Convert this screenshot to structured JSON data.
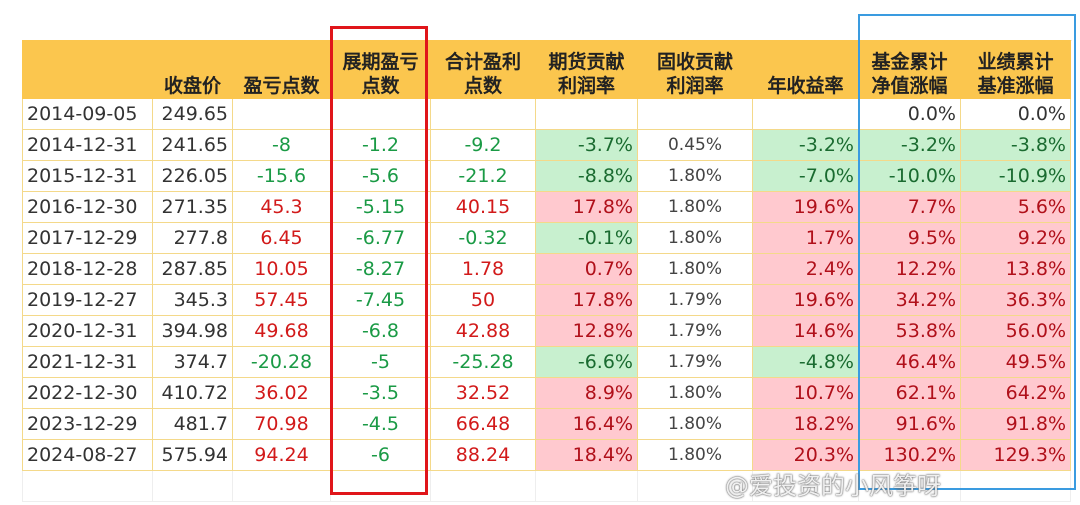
{
  "headers": [
    "",
    "收盘价",
    "盈亏点数",
    "展期盈亏\n点数",
    "合计盈利\n点数",
    "期货贡献\n利润率",
    "固收贡献\n利润率",
    "年收益率",
    "基金累计\n净值涨幅",
    "业绩累计\n基准涨幅"
  ],
  "rows": [
    [
      "2014-09-05",
      "249.65",
      "",
      "",
      "",
      "",
      "",
      "",
      "0.0%",
      "0.0%"
    ],
    [
      "2014-12-31",
      "241.65",
      "-8",
      "-1.2",
      "-9.2",
      "-3.7%",
      "0.45%",
      "-3.2%",
      "-3.2%",
      "-3.8%"
    ],
    [
      "2015-12-31",
      "226.05",
      "-15.6",
      "-5.6",
      "-21.2",
      "-8.8%",
      "1.80%",
      "-7.0%",
      "-10.0%",
      "-10.9%"
    ],
    [
      "2016-12-30",
      "271.35",
      "45.3",
      "-5.15",
      "40.15",
      "17.8%",
      "1.80%",
      "19.6%",
      "7.7%",
      "5.6%"
    ],
    [
      "2017-12-29",
      "277.8",
      "6.45",
      "-6.77",
      "-0.32",
      "-0.1%",
      "1.80%",
      "1.7%",
      "9.5%",
      "9.2%"
    ],
    [
      "2018-12-28",
      "287.85",
      "10.05",
      "-8.27",
      "1.78",
      "0.7%",
      "1.80%",
      "2.4%",
      "12.2%",
      "13.8%"
    ],
    [
      "2019-12-27",
      "345.3",
      "57.45",
      "-7.45",
      "50",
      "17.8%",
      "1.79%",
      "19.6%",
      "34.2%",
      "36.3%"
    ],
    [
      "2020-12-31",
      "394.98",
      "49.68",
      "-6.8",
      "42.88",
      "12.8%",
      "1.79%",
      "14.6%",
      "53.8%",
      "56.0%"
    ],
    [
      "2021-12-31",
      "374.7",
      "-20.28",
      "-5",
      "-25.28",
      "-6.6%",
      "1.79%",
      "-4.8%",
      "46.4%",
      "49.5%"
    ],
    [
      "2022-12-30",
      "410.72",
      "36.02",
      "-3.5",
      "32.52",
      "8.9%",
      "1.80%",
      "10.7%",
      "62.1%",
      "64.2%"
    ],
    [
      "2023-12-29",
      "481.7",
      "70.98",
      "-4.5",
      "66.48",
      "16.4%",
      "1.80%",
      "18.2%",
      "91.6%",
      "91.8%"
    ],
    [
      "2024-08-27",
      "575.94",
      "94.24",
      "-6",
      "88.24",
      "18.4%",
      "1.80%",
      "20.3%",
      "130.2%",
      "129.3%"
    ]
  ],
  "watermark": "@爱投资的小风筝呀",
  "colors": {
    "header": "#fbc64e",
    "positive_fill": "#ffc9cf",
    "negative_fill": "#c8f0cf",
    "positive_text": "#d21a1a",
    "negative_text": "#1a9a45",
    "highlight_red": "#e0151a",
    "highlight_blue": "#3a9be0"
  }
}
